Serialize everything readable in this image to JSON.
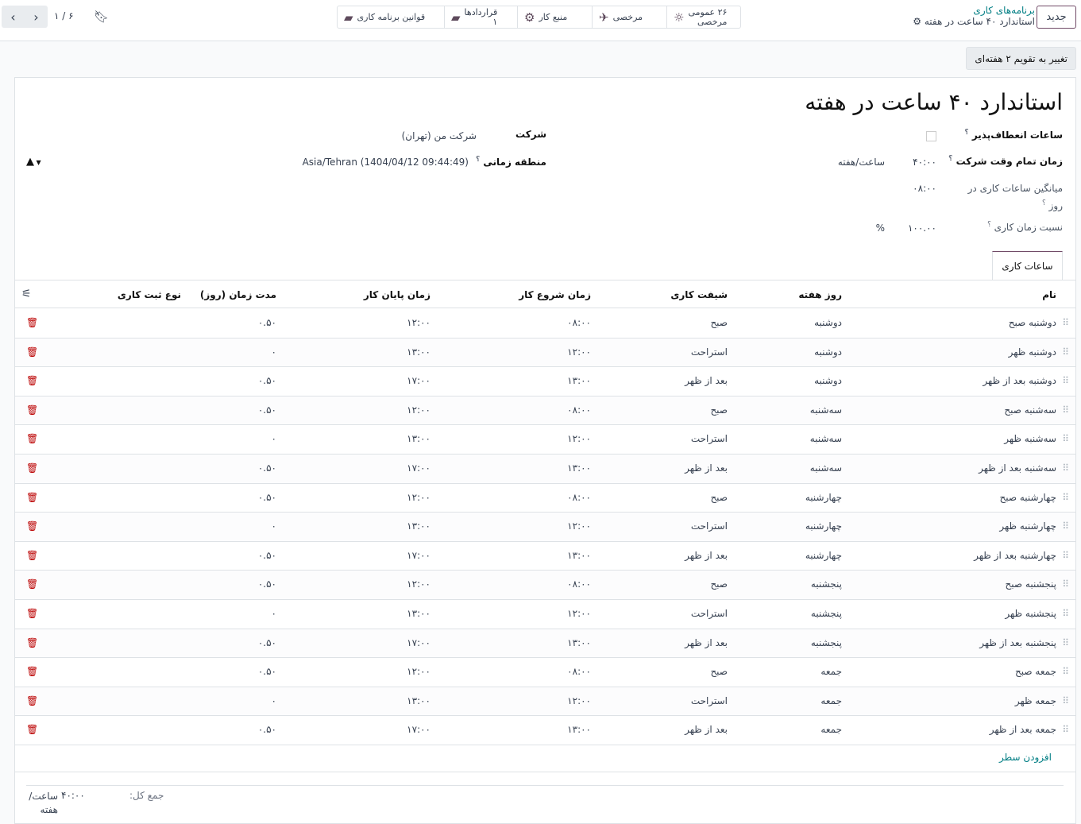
{
  "topbar": {
    "new_button": "جدید",
    "breadcrumb_parent": "برنامه‌های کاری",
    "breadcrumb_current": "استاندارد ۴۰ ساعت در هفته",
    "pager": "۶ / ۱"
  },
  "smart_buttons": [
    {
      "label": "۲۶ عمومی",
      "sub": "مرخصی",
      "icon": "sun-icon"
    },
    {
      "label": "مرخصی",
      "sub": "",
      "icon": "plane-icon"
    },
    {
      "label": "منبع کار",
      "sub": "",
      "icon": "gears-icon"
    },
    {
      "label": "قراردادها",
      "sub": "۱",
      "icon": "book-icon"
    },
    {
      "label": "قوانین برنامه کاری",
      "sub": "",
      "icon": "book-icon"
    }
  ],
  "switch_button": "تغییر به تقویم ۲ هفته‌ای",
  "form": {
    "title": "استاندارد ۴۰ ساعت در هفته",
    "flexible_label": "ساعات انعطاف‌پذیر",
    "fulltime_label": "زمان تمام وقت شرکت",
    "fulltime_value": "۴۰:۰۰",
    "fulltime_unit": "ساعت/هفته",
    "avg_label": "میانگین ساعات کاری در روز",
    "avg_value": "۰۸:۰۰",
    "ratio_label": "نسبت زمان کاری",
    "ratio_value": "۱۰۰.۰۰",
    "ratio_unit": "%",
    "company_label": "شرکت",
    "company_value": "شرکت من (تهران)",
    "tz_label": "منطقه زمانی",
    "tz_value": "Asia/Tehran (1404/04/12 09:44:49)",
    "help_mark": "؟"
  },
  "tab": "ساعات کاری",
  "table": {
    "headers": [
      "نام",
      "روز هفته",
      "شیفت کاری",
      "زمان شروع کار",
      "زمان پایان کار",
      "مدت زمان (روز)",
      "نوع ثبت کاری"
    ],
    "rows": [
      [
        "دوشنبه صبح",
        "دوشنبه",
        "صبح",
        "۰۸:۰۰",
        "۱۲:۰۰",
        "۰.۵۰"
      ],
      [
        "دوشنبه ظهر",
        "دوشنبه",
        "استراحت",
        "۱۲:۰۰",
        "۱۳:۰۰",
        "۰"
      ],
      [
        "دوشنبه بعد از ظهر",
        "دوشنبه",
        "بعد از ظهر",
        "۱۳:۰۰",
        "۱۷:۰۰",
        "۰.۵۰"
      ],
      [
        "سه‌شنبه صبح",
        "سه‌شنبه",
        "صبح",
        "۰۸:۰۰",
        "۱۲:۰۰",
        "۰.۵۰"
      ],
      [
        "سه‌شنبه ظهر",
        "سه‌شنبه",
        "استراحت",
        "۱۲:۰۰",
        "۱۳:۰۰",
        "۰"
      ],
      [
        "سه‌شنبه بعد از ظهر",
        "سه‌شنبه",
        "بعد از ظهر",
        "۱۳:۰۰",
        "۱۷:۰۰",
        "۰.۵۰"
      ],
      [
        "چهارشنبه صبح",
        "چهارشنبه",
        "صبح",
        "۰۸:۰۰",
        "۱۲:۰۰",
        "۰.۵۰"
      ],
      [
        "چهارشنبه ظهر",
        "چهارشنبه",
        "استراحت",
        "۱۲:۰۰",
        "۱۳:۰۰",
        "۰"
      ],
      [
        "چهارشنبه بعد از ظهر",
        "چهارشنبه",
        "بعد از ظهر",
        "۱۳:۰۰",
        "۱۷:۰۰",
        "۰.۵۰"
      ],
      [
        "پنجشنبه صبح",
        "پنجشنبه",
        "صبح",
        "۰۸:۰۰",
        "۱۲:۰۰",
        "۰.۵۰"
      ],
      [
        "پنجشنبه ظهر",
        "پنجشنبه",
        "استراحت",
        "۱۲:۰۰",
        "۱۳:۰۰",
        "۰"
      ],
      [
        "پنجشنبه بعد از ظهر",
        "پنجشنبه",
        "بعد از ظهر",
        "۱۳:۰۰",
        "۱۷:۰۰",
        "۰.۵۰"
      ],
      [
        "جمعه صبح",
        "جمعه",
        "صبح",
        "۰۸:۰۰",
        "۱۲:۰۰",
        "۰.۵۰"
      ],
      [
        "جمعه ظهر",
        "جمعه",
        "استراحت",
        "۱۲:۰۰",
        "۱۳:۰۰",
        "۰"
      ],
      [
        "جمعه بعد از ظهر",
        "جمعه",
        "بعد از ظهر",
        "۱۳:۰۰",
        "۱۷:۰۰",
        "۰.۵۰"
      ]
    ],
    "add_line": "افزودن سطر"
  },
  "footer": {
    "total_label": "جمع کل:",
    "total_value": "۴۰:۰۰",
    "total_unit": "ساعت/ هفته"
  }
}
